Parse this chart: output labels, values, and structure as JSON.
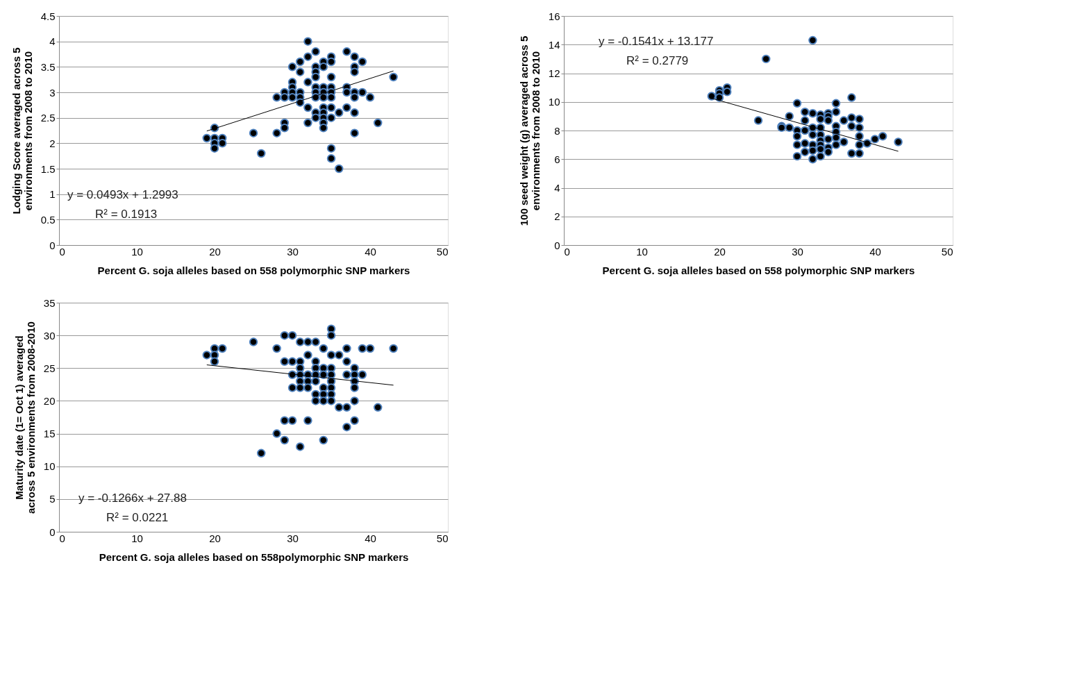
{
  "chart_data": [
    {
      "type": "scatter",
      "xlabel": "Percent G. soja alleles based on 558 polymorphic SNP markers",
      "ylabel": "Lodging Score averaged across 5\nenvironments from 2008 to 2010",
      "xlim": [
        0,
        50
      ],
      "xticks": [
        0,
        10,
        20,
        30,
        40,
        50
      ],
      "ylim": [
        0,
        4.5
      ],
      "yticks": [
        0,
        0.5,
        1,
        1.5,
        2,
        2.5,
        3,
        3.5,
        4,
        4.5
      ],
      "grid": "y",
      "annotations": [
        "y = 0.0493x + 1.2993",
        "R² = 0.1913"
      ],
      "series": [
        {
          "marker": "circle",
          "color": "#000000",
          "x": [
            19,
            20,
            20,
            20,
            20,
            21,
            21,
            25,
            26,
            28,
            28,
            29,
            29,
            29,
            29,
            30,
            30,
            30,
            30,
            30,
            31,
            31,
            31,
            31,
            31,
            32,
            32,
            32,
            32,
            32,
            33,
            33,
            33,
            33,
            33,
            33,
            33,
            33,
            33,
            34,
            34,
            34,
            34,
            34,
            34,
            34,
            34,
            34,
            34,
            35,
            35,
            35,
            35,
            35,
            35,
            35,
            35,
            35,
            35,
            36,
            36,
            37,
            37,
            37,
            37,
            38,
            38,
            38,
            38,
            38,
            38,
            38,
            39,
            39,
            40,
            41,
            43
          ],
          "values": [
            2.1,
            2.3,
            2.1,
            2.0,
            1.9,
            2.1,
            2.0,
            2.2,
            1.8,
            2.9,
            2.2,
            3.0,
            2.9,
            2.4,
            2.3,
            3.5,
            3.2,
            3.1,
            3.0,
            2.9,
            3.6,
            3.4,
            3.0,
            2.9,
            2.8,
            4.0,
            3.7,
            3.2,
            2.7,
            2.4,
            3.8,
            3.5,
            3.4,
            3.3,
            3.1,
            3.0,
            2.9,
            2.6,
            2.5,
            3.6,
            3.5,
            3.1,
            3.0,
            2.9,
            2.7,
            2.6,
            2.5,
            2.4,
            2.3,
            3.7,
            3.6,
            3.3,
            3.1,
            3.0,
            2.9,
            2.7,
            2.5,
            1.9,
            1.7,
            2.6,
            1.5,
            3.8,
            3.1,
            3.0,
            2.7,
            3.7,
            3.5,
            3.4,
            3.0,
            2.9,
            2.6,
            2.2,
            3.6,
            3.0,
            2.9,
            2.4,
            3.3
          ]
        },
        {
          "type": "line",
          "marker": "none",
          "color": "#000000",
          "x": [
            19,
            43
          ],
          "values": [
            2.24,
            3.42
          ]
        }
      ]
    },
    {
      "type": "scatter",
      "xlabel": "Percent G. soja alleles based on 558 polymorphic SNP markers",
      "ylabel": "100 seed weight (g) averaged across 5\nenvironments from 2008 to 2010",
      "xlim": [
        0,
        50
      ],
      "xticks": [
        0,
        10,
        20,
        30,
        40,
        50
      ],
      "ylim": [
        0,
        16
      ],
      "yticks": [
        0,
        2,
        4,
        6,
        8,
        10,
        12,
        14,
        16
      ],
      "grid": "y",
      "annotations": [
        "y = -0.1541x + 13.177",
        "R² = 0.2779"
      ],
      "series": [
        {
          "marker": "circle",
          "color": "#000000",
          "x": [
            19,
            20,
            20,
            20,
            21,
            21,
            25,
            26,
            28,
            28,
            29,
            29,
            30,
            30,
            30,
            30,
            30,
            31,
            31,
            31,
            31,
            31,
            32,
            32,
            32,
            32,
            32,
            32,
            32,
            33,
            33,
            33,
            33,
            33,
            33,
            33,
            33,
            34,
            34,
            34,
            34,
            34,
            34,
            35,
            35,
            35,
            35,
            35,
            35,
            36,
            36,
            37,
            37,
            37,
            37,
            38,
            38,
            38,
            38,
            38,
            39,
            40,
            41,
            43
          ],
          "values": [
            10.4,
            10.8,
            10.6,
            10.3,
            11.0,
            10.7,
            8.7,
            13.0,
            8.3,
            8.2,
            9.0,
            8.2,
            9.9,
            8.0,
            7.6,
            7.0,
            6.2,
            9.3,
            8.7,
            8.0,
            7.1,
            6.5,
            14.3,
            9.2,
            8.2,
            7.7,
            7.0,
            6.6,
            6.0,
            9.1,
            8.8,
            8.2,
            7.7,
            7.3,
            7.0,
            6.7,
            6.2,
            9.2,
            9.0,
            8.7,
            7.4,
            6.8,
            6.5,
            9.9,
            9.3,
            8.3,
            7.9,
            7.5,
            7.0,
            8.7,
            7.2,
            10.3,
            8.9,
            8.3,
            6.4,
            8.8,
            8.2,
            7.6,
            7.0,
            6.4,
            7.1,
            7.4,
            7.6,
            7.2
          ]
        },
        {
          "type": "line",
          "marker": "none",
          "color": "#000000",
          "x": [
            19,
            43
          ],
          "values": [
            10.25,
            6.55
          ]
        }
      ]
    },
    {
      "type": "scatter",
      "xlabel": "Percent G. soja alleles based on 558polymorphic SNP markers",
      "ylabel": "Maturity date (1= Oct 1) averaged\nacross 5 environments from 2008-2010",
      "xlim": [
        0,
        50
      ],
      "xticks": [
        0,
        10,
        20,
        30,
        40,
        50
      ],
      "ylim": [
        0,
        35
      ],
      "yticks": [
        0,
        5,
        10,
        15,
        20,
        25,
        30,
        35
      ],
      "grid": "y",
      "annotations": [
        "y = -0.1266x + 27.88",
        "R² = 0.0221"
      ],
      "series": [
        {
          "marker": "circle",
          "color": "#000000",
          "x": [
            19,
            20,
            20,
            20,
            21,
            25,
            26,
            28,
            28,
            29,
            29,
            29,
            29,
            30,
            30,
            30,
            30,
            30,
            31,
            31,
            31,
            31,
            31,
            31,
            31,
            32,
            32,
            32,
            32,
            32,
            32,
            33,
            33,
            33,
            33,
            33,
            33,
            33,
            34,
            34,
            34,
            34,
            34,
            34,
            34,
            35,
            35,
            35,
            35,
            35,
            35,
            35,
            35,
            35,
            36,
            36,
            37,
            37,
            37,
            37,
            37,
            38,
            38,
            38,
            38,
            38,
            38,
            39,
            39,
            40,
            41,
            43
          ],
          "values": [
            27,
            28,
            27,
            26,
            28,
            29,
            12,
            28,
            15,
            30,
            26,
            17,
            14,
            30,
            26,
            24,
            22,
            17,
            29,
            26,
            25,
            24,
            23,
            22,
            13,
            29,
            27,
            24,
            23,
            22,
            17,
            29,
            26,
            25,
            24,
            23,
            21,
            20,
            28,
            25,
            24,
            22,
            21,
            20,
            14,
            31,
            30,
            27,
            25,
            24,
            23,
            22,
            21,
            20,
            27,
            19,
            28,
            26,
            24,
            19,
            16,
            25,
            24,
            23,
            22,
            20,
            17,
            28,
            24,
            28,
            19,
            28
          ]
        },
        {
          "type": "line",
          "marker": "none",
          "color": "#000000",
          "x": [
            19,
            43
          ],
          "values": [
            25.5,
            22.4
          ]
        }
      ]
    }
  ]
}
